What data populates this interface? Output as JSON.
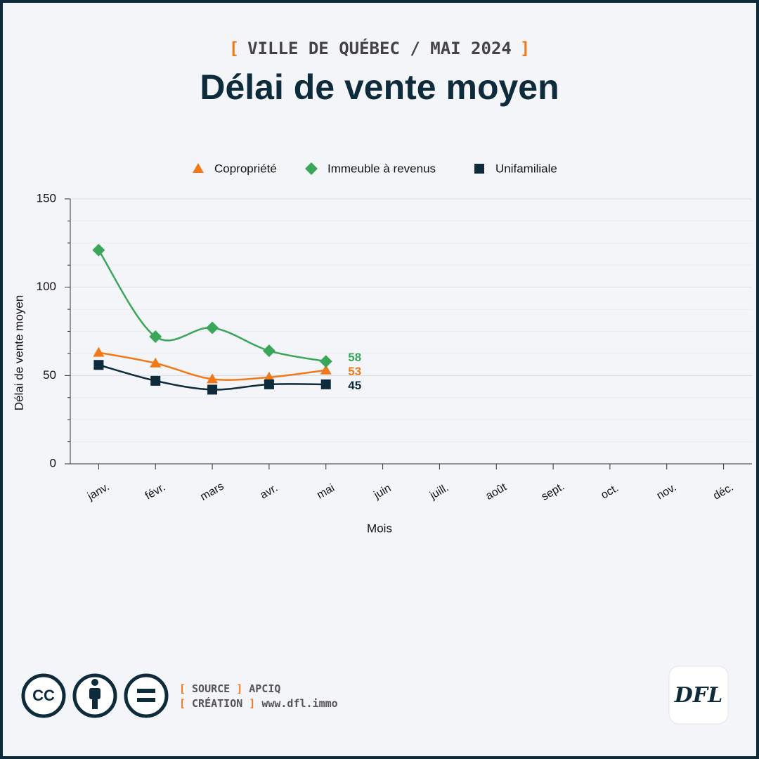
{
  "chart_data": {
    "type": "line",
    "brackets": [
      "[",
      "]"
    ],
    "subtitle": "VILLE DE QUÉBEC / MAI 2024",
    "title": "Délai de vente moyen",
    "x_label": "Mois",
    "y_label": "Délai de vente moyen",
    "categories": [
      "janv.",
      "févr.",
      "mars",
      "avr.",
      "mai",
      "juin",
      "juill.",
      "août",
      "sept.",
      "oct.",
      "nov.",
      "déc."
    ],
    "series": [
      {
        "name": "Copropriété",
        "color": "#f07a1a",
        "marker": "triangle",
        "values": [
          63,
          57,
          48,
          49,
          53,
          null,
          null,
          null,
          null,
          null,
          null,
          null
        ]
      },
      {
        "name": "Immeuble à revenus",
        "color": "#3aa65a",
        "marker": "diamond",
        "values": [
          121,
          72,
          77,
          64,
          58,
          null,
          null,
          null,
          null,
          null,
          null,
          null
        ]
      },
      {
        "name": "Unifamiliale",
        "color": "#0d2b3a",
        "marker": "square",
        "values": [
          56,
          47,
          42,
          45,
          45,
          null,
          null,
          null,
          null,
          null,
          null,
          null
        ]
      }
    ],
    "ylim": [
      0,
      150
    ],
    "yticks": [
      0,
      50,
      100,
      150
    ],
    "yminor_ticks": [
      12.5,
      25,
      37.5,
      62.5,
      75,
      87.5,
      112.5,
      125,
      137.5
    ],
    "grid": true,
    "legend": "top",
    "smooth": true,
    "footer": {
      "source_label": "SOURCE",
      "source": "APCIQ",
      "creation_label": "CRÉATION",
      "creation": "www.dfl.immo",
      "license": "CC",
      "logo": "DFL"
    }
  }
}
